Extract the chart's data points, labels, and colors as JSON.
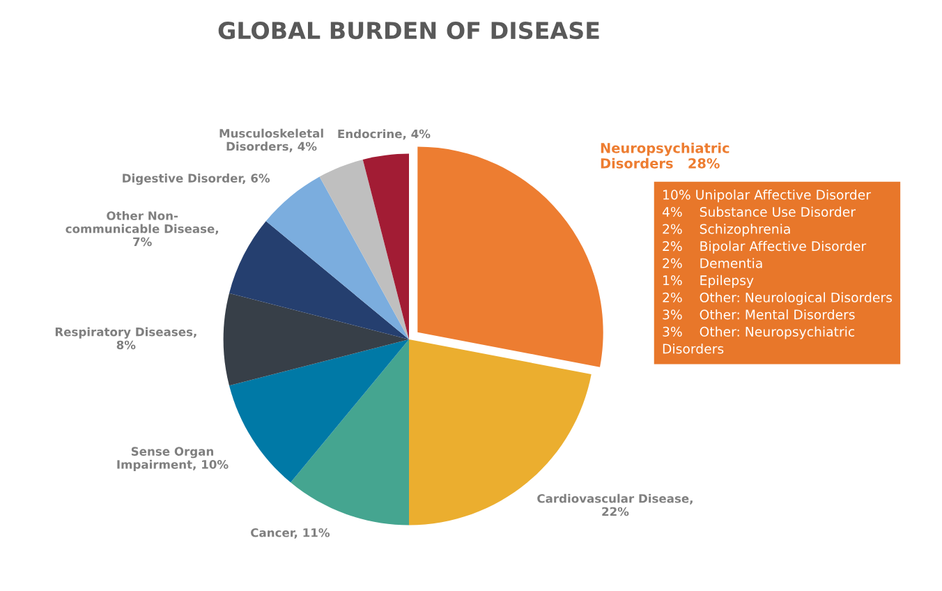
{
  "chart_data": {
    "type": "pie",
    "title": "GLOBAL BURDEN OF DISEASE",
    "categories": [
      "Neuropsychiatric\nDisorders   28%",
      "Cardiovascular Disease,\n22%",
      "Cancer, 11%",
      "Sense Organ\nImpairment, 10%",
      "Respiratory Diseases,\n8%",
      "Other Non-\ncommunicable Disease,\n7%",
      "Digestive Disorder, 6%",
      "Musculoskeletal\nDisorders, 4%",
      "Endocrine, 4%"
    ],
    "values": [
      28,
      22,
      11,
      10,
      8,
      7,
      6,
      4,
      4
    ],
    "colors": [
      "#ed7d31",
      "#ebae2f",
      "#45a590",
      "#0079a6",
      "#373f48",
      "#253f6f",
      "#7badde",
      "#bfbfbf",
      "#a21c34"
    ],
    "annotations": [
      "10% Unipolar Affective Disorder\n4%    Substance Use Disorder\n2%    Schizophrenia\n2%    Bipolar Affective Disorder\n2%    Dementia\n1%    Epilepsy\n2%    Other: Neurological Disorders\n3%    Other: Mental Disorders\n3%    Other: Neuropsychiatric\nDisorders"
    ]
  }
}
